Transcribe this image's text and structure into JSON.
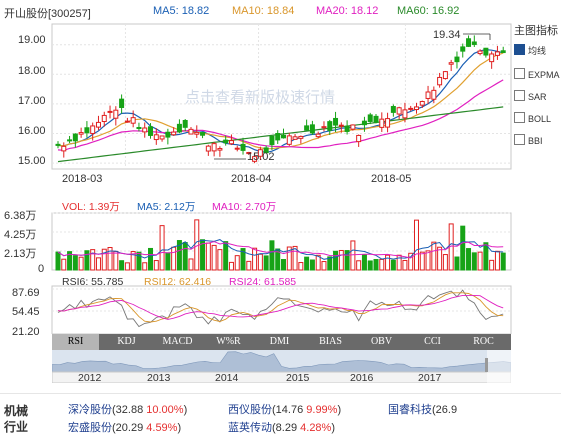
{
  "header": {
    "stock_name": "开山股份[300257]",
    "ma5": "MA5: 18.82",
    "ma10": "MA10: 18.84",
    "ma20": "MA20: 18.12",
    "ma60": "MA60: 16.92"
  },
  "side_panel": {
    "title": "主图指标",
    "items": [
      {
        "label": "均线",
        "checked": true
      },
      {
        "label": "EXPMA",
        "checked": false
      },
      {
        "label": "SAR",
        "checked": false
      },
      {
        "label": "BOLL",
        "checked": false
      },
      {
        "label": "BBI",
        "checked": false
      }
    ]
  },
  "watermark": "点击查看新版极速行情",
  "price_chart": {
    "y_ticks": [
      "19.00",
      "18.00",
      "17.00",
      "16.00",
      "15.00"
    ],
    "x_ticks": [
      "2018-03",
      "2018-04",
      "2018-05"
    ],
    "high_label": "19.34",
    "low_label": "15.02"
  },
  "volume_chart": {
    "vol": "VOL: 1.39万",
    "ma5": "MA5: 2.12万",
    "ma10": "MA10: 2.70万",
    "y_ticks": [
      "6.38万",
      "4.25万",
      "2.13万",
      "0"
    ]
  },
  "rsi_chart": {
    "rsi6": "RSI6: 55.785",
    "rsi12": "RSI12: 62.416",
    "rsi24": "RSI24: 61.585",
    "y_ticks": [
      "87.69",
      "54.45",
      "21.20"
    ]
  },
  "tabs": [
    "RSI",
    "KDJ",
    "MACD",
    "W%R",
    "DMI",
    "BIAS",
    "OBV",
    "CCI",
    "ROC"
  ],
  "active_tab": "RSI",
  "navigator": {
    "years": [
      "2012",
      "2013",
      "2014",
      "2015",
      "2016",
      "2017"
    ]
  },
  "bottom": {
    "industry_label_1": "机械",
    "industry_label_2": "行业",
    "stocks": [
      {
        "name": "深冷股份",
        "price": "(32.88",
        "pct": "10.00%",
        "close": ")"
      },
      {
        "name": "西仪股份",
        "price": "(14.76",
        "pct": "9.99%",
        "close": ")"
      },
      {
        "name": "国睿科技",
        "price": "(26.9",
        "pct": "",
        "close": ""
      },
      {
        "name": "宏盛股份",
        "price": "(20.29",
        "pct": "4.59%",
        "close": ")"
      },
      {
        "name": "蓝英传动",
        "price": "(8.29",
        "pct": "4.28%",
        "close": ")"
      }
    ]
  },
  "colors": {
    "up": "#e02020",
    "down": "#17a317",
    "ma5": "#1a5fb4",
    "ma10": "#e0a030",
    "ma20": "#e020c0",
    "ma60": "#2a8a2a"
  }
}
